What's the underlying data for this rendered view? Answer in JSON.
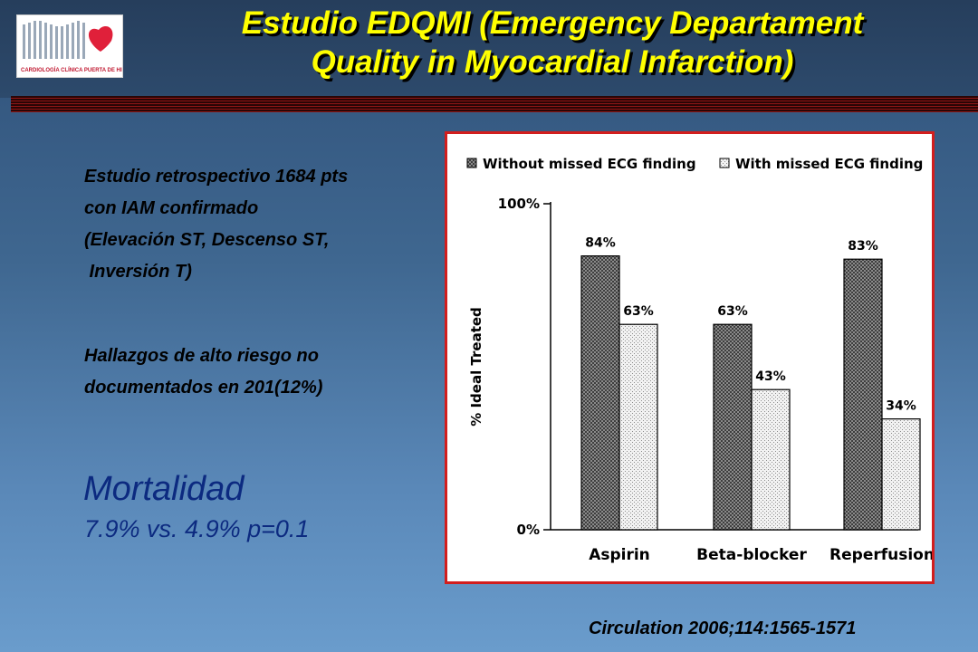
{
  "logo": {
    "text": "CARDIOLOGÍA CLÍNICA PUERTA DE HIERRO",
    "accent": "#e0203a"
  },
  "title": {
    "line1": "Estudio EDQMI (Emergency Departament",
    "line2": "Quality in Myocardial Infarction)"
  },
  "study": {
    "lines": [
      "Estudio retrospectivo 1684 pts",
      "con IAM confirmado",
      "(Elevación ST, Descenso ST,",
      " Inversión T)"
    ]
  },
  "findings": {
    "lines": [
      "Hallazgos de alto riesgo no",
      "documentados en 201(12%)"
    ]
  },
  "mortality": {
    "title": "Mortalidad",
    "value": "7.9% vs. 4.9%  p=0.1"
  },
  "citation": "Circulation 2006;114:1565-1571",
  "chart_data": {
    "type": "bar",
    "title": "",
    "xlabel": "",
    "ylabel": "% Ideal Treated",
    "ylim": [
      0,
      100
    ],
    "y_tick_labels": [
      "100%",
      "0%"
    ],
    "categories": [
      "Aspirin",
      "Beta-blocker",
      "Reperfusion"
    ],
    "series": [
      {
        "name": "Without missed ECG finding",
        "values": [
          84,
          63,
          83
        ],
        "labels": [
          "84%",
          "63%",
          "83%"
        ],
        "color": "#777777"
      },
      {
        "name": "With missed ECG finding",
        "values": [
          63,
          43,
          34
        ],
        "labels": [
          "63%",
          "43%",
          "34%"
        ],
        "color": "#e2e2e2"
      }
    ],
    "legend": "top",
    "grid": false
  }
}
